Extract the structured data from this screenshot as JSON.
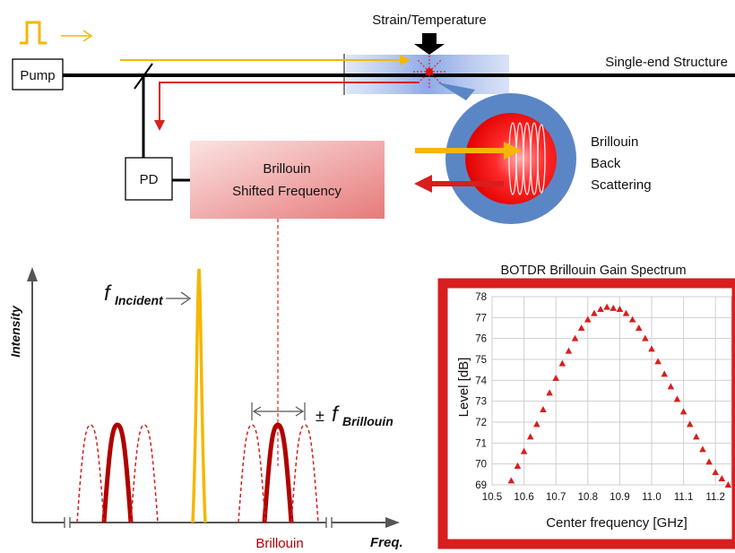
{
  "labels": {
    "strain_temperature": "Strain/Temperature",
    "single_end_structure": "Single-end Structure",
    "pump": "Pump",
    "pd": "PD",
    "bsf_line1": "Brillouin",
    "bsf_line2": "Shifted Frequency",
    "backscatter_line1": "Brillouin",
    "backscatter_line2": "Back",
    "backscatter_line3": "Scattering"
  },
  "spectrum": {
    "ylabel": "Intensity",
    "xlabel": "Freq.",
    "f_symbol": "f",
    "incident_sub": "Incident",
    "pm_symbol": "±",
    "brillouin_sub": "Brillouin",
    "brillouin_label": "Brillouin"
  },
  "colors": {
    "pump_pulse": "#f5b700",
    "forward": "#f5b700",
    "backward": "#d81e1e",
    "fiber": "#000000",
    "spectrum_main": "#b00000",
    "spectrum_side": "#d81e1e",
    "gain_frame": "#d81e1e",
    "gain_curve": "#d81e1e",
    "bsf_box_light": "#f8d6d6",
    "bsf_box_dark": "#e88080",
    "scatter_circle": "#5b86c5"
  },
  "chart_data": {
    "type": "scatter",
    "title": "BOTDR Brillouin Gain Spectrum",
    "xlabel": "Center frequency [GHz]",
    "ylabel": "Level [dB]",
    "xlim": [
      10.5,
      11.25
    ],
    "ylim": [
      69,
      78
    ],
    "xticks": [
      10.5,
      10.6,
      10.7,
      10.8,
      10.9,
      11.0,
      11.1,
      11.2
    ],
    "xtick_labels": [
      "10.5",
      "10.6",
      "10.7",
      "10.8",
      "10.9",
      "11.0",
      "11.1",
      "11.2"
    ],
    "yticks": [
      69,
      70,
      71,
      72,
      73,
      74,
      75,
      76,
      77,
      78
    ],
    "grid": true,
    "series": [
      {
        "marker": "triangle",
        "x": [
          10.56,
          10.58,
          10.6,
          10.62,
          10.64,
          10.66,
          10.68,
          10.7,
          10.72,
          10.74,
          10.76,
          10.78,
          10.8,
          10.82,
          10.84,
          10.86,
          10.88,
          10.9,
          10.92,
          10.94,
          10.96,
          10.98,
          11.0,
          11.02,
          11.04,
          11.06,
          11.08,
          11.1,
          11.12,
          11.14,
          11.16,
          11.18,
          11.2,
          11.22,
          11.24
        ],
        "y": [
          69.2,
          69.9,
          70.6,
          71.3,
          71.9,
          72.6,
          73.4,
          74.1,
          74.8,
          75.4,
          76.0,
          76.5,
          76.9,
          77.2,
          77.4,
          77.5,
          77.45,
          77.4,
          77.2,
          76.9,
          76.5,
          76.0,
          75.5,
          74.9,
          74.3,
          73.7,
          73.1,
          72.5,
          71.9,
          71.3,
          70.7,
          70.1,
          69.6,
          69.3,
          69.0
        ]
      }
    ]
  }
}
